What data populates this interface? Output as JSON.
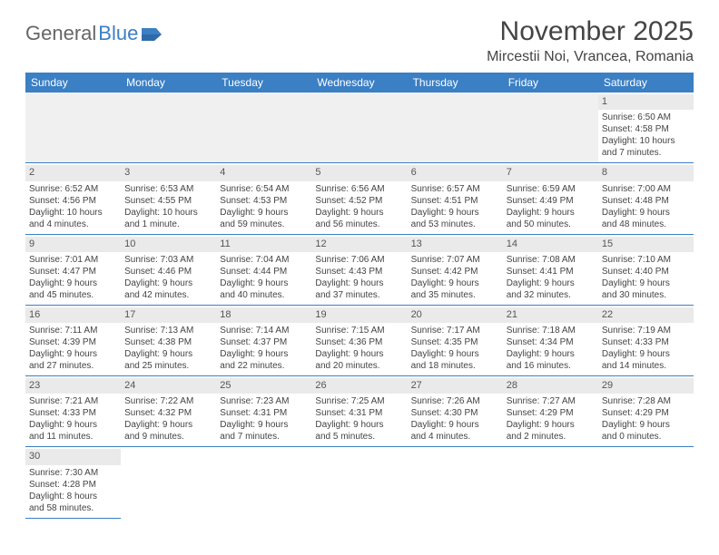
{
  "brand": {
    "part1": "General",
    "part2": "Blue"
  },
  "title": "November 2025",
  "location": "Mircestii Noi, Vrancea, Romania",
  "colors": {
    "accent": "#3b7fc4",
    "header_text": "#ffffff",
    "daybar": "#eaeaea",
    "text": "#444444"
  },
  "daysOfWeek": [
    "Sunday",
    "Monday",
    "Tuesday",
    "Wednesday",
    "Thursday",
    "Friday",
    "Saturday"
  ],
  "firstWeekday": 6,
  "daysInMonth": 30,
  "cells": {
    "1": {
      "sunrise": "Sunrise: 6:50 AM",
      "sunset": "Sunset: 4:58 PM",
      "day1": "Daylight: 10 hours",
      "day2": "and 7 minutes."
    },
    "2": {
      "sunrise": "Sunrise: 6:52 AM",
      "sunset": "Sunset: 4:56 PM",
      "day1": "Daylight: 10 hours",
      "day2": "and 4 minutes."
    },
    "3": {
      "sunrise": "Sunrise: 6:53 AM",
      "sunset": "Sunset: 4:55 PM",
      "day1": "Daylight: 10 hours",
      "day2": "and 1 minute."
    },
    "4": {
      "sunrise": "Sunrise: 6:54 AM",
      "sunset": "Sunset: 4:53 PM",
      "day1": "Daylight: 9 hours",
      "day2": "and 59 minutes."
    },
    "5": {
      "sunrise": "Sunrise: 6:56 AM",
      "sunset": "Sunset: 4:52 PM",
      "day1": "Daylight: 9 hours",
      "day2": "and 56 minutes."
    },
    "6": {
      "sunrise": "Sunrise: 6:57 AM",
      "sunset": "Sunset: 4:51 PM",
      "day1": "Daylight: 9 hours",
      "day2": "and 53 minutes."
    },
    "7": {
      "sunrise": "Sunrise: 6:59 AM",
      "sunset": "Sunset: 4:49 PM",
      "day1": "Daylight: 9 hours",
      "day2": "and 50 minutes."
    },
    "8": {
      "sunrise": "Sunrise: 7:00 AM",
      "sunset": "Sunset: 4:48 PM",
      "day1": "Daylight: 9 hours",
      "day2": "and 48 minutes."
    },
    "9": {
      "sunrise": "Sunrise: 7:01 AM",
      "sunset": "Sunset: 4:47 PM",
      "day1": "Daylight: 9 hours",
      "day2": "and 45 minutes."
    },
    "10": {
      "sunrise": "Sunrise: 7:03 AM",
      "sunset": "Sunset: 4:46 PM",
      "day1": "Daylight: 9 hours",
      "day2": "and 42 minutes."
    },
    "11": {
      "sunrise": "Sunrise: 7:04 AM",
      "sunset": "Sunset: 4:44 PM",
      "day1": "Daylight: 9 hours",
      "day2": "and 40 minutes."
    },
    "12": {
      "sunrise": "Sunrise: 7:06 AM",
      "sunset": "Sunset: 4:43 PM",
      "day1": "Daylight: 9 hours",
      "day2": "and 37 minutes."
    },
    "13": {
      "sunrise": "Sunrise: 7:07 AM",
      "sunset": "Sunset: 4:42 PM",
      "day1": "Daylight: 9 hours",
      "day2": "and 35 minutes."
    },
    "14": {
      "sunrise": "Sunrise: 7:08 AM",
      "sunset": "Sunset: 4:41 PM",
      "day1": "Daylight: 9 hours",
      "day2": "and 32 minutes."
    },
    "15": {
      "sunrise": "Sunrise: 7:10 AM",
      "sunset": "Sunset: 4:40 PM",
      "day1": "Daylight: 9 hours",
      "day2": "and 30 minutes."
    },
    "16": {
      "sunrise": "Sunrise: 7:11 AM",
      "sunset": "Sunset: 4:39 PM",
      "day1": "Daylight: 9 hours",
      "day2": "and 27 minutes."
    },
    "17": {
      "sunrise": "Sunrise: 7:13 AM",
      "sunset": "Sunset: 4:38 PM",
      "day1": "Daylight: 9 hours",
      "day2": "and 25 minutes."
    },
    "18": {
      "sunrise": "Sunrise: 7:14 AM",
      "sunset": "Sunset: 4:37 PM",
      "day1": "Daylight: 9 hours",
      "day2": "and 22 minutes."
    },
    "19": {
      "sunrise": "Sunrise: 7:15 AM",
      "sunset": "Sunset: 4:36 PM",
      "day1": "Daylight: 9 hours",
      "day2": "and 20 minutes."
    },
    "20": {
      "sunrise": "Sunrise: 7:17 AM",
      "sunset": "Sunset: 4:35 PM",
      "day1": "Daylight: 9 hours",
      "day2": "and 18 minutes."
    },
    "21": {
      "sunrise": "Sunrise: 7:18 AM",
      "sunset": "Sunset: 4:34 PM",
      "day1": "Daylight: 9 hours",
      "day2": "and 16 minutes."
    },
    "22": {
      "sunrise": "Sunrise: 7:19 AM",
      "sunset": "Sunset: 4:33 PM",
      "day1": "Daylight: 9 hours",
      "day2": "and 14 minutes."
    },
    "23": {
      "sunrise": "Sunrise: 7:21 AM",
      "sunset": "Sunset: 4:33 PM",
      "day1": "Daylight: 9 hours",
      "day2": "and 11 minutes."
    },
    "24": {
      "sunrise": "Sunrise: 7:22 AM",
      "sunset": "Sunset: 4:32 PM",
      "day1": "Daylight: 9 hours",
      "day2": "and 9 minutes."
    },
    "25": {
      "sunrise": "Sunrise: 7:23 AM",
      "sunset": "Sunset: 4:31 PM",
      "day1": "Daylight: 9 hours",
      "day2": "and 7 minutes."
    },
    "26": {
      "sunrise": "Sunrise: 7:25 AM",
      "sunset": "Sunset: 4:31 PM",
      "day1": "Daylight: 9 hours",
      "day2": "and 5 minutes."
    },
    "27": {
      "sunrise": "Sunrise: 7:26 AM",
      "sunset": "Sunset: 4:30 PM",
      "day1": "Daylight: 9 hours",
      "day2": "and 4 minutes."
    },
    "28": {
      "sunrise": "Sunrise: 7:27 AM",
      "sunset": "Sunset: 4:29 PM",
      "day1": "Daylight: 9 hours",
      "day2": "and 2 minutes."
    },
    "29": {
      "sunrise": "Sunrise: 7:28 AM",
      "sunset": "Sunset: 4:29 PM",
      "day1": "Daylight: 9 hours",
      "day2": "and 0 minutes."
    },
    "30": {
      "sunrise": "Sunrise: 7:30 AM",
      "sunset": "Sunset: 4:28 PM",
      "day1": "Daylight: 8 hours",
      "day2": "and 58 minutes."
    }
  }
}
